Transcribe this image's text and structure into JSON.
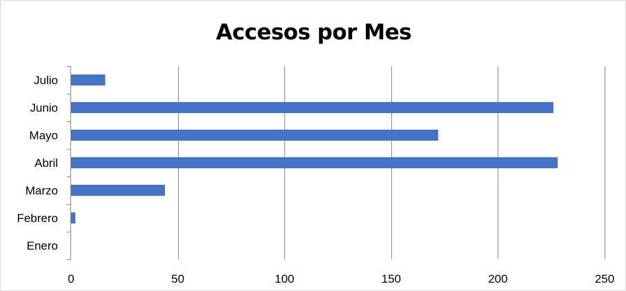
{
  "chart_data": {
    "type": "bar",
    "orientation": "horizontal",
    "title": "Accesos por Mes",
    "xlabel": "",
    "ylabel": "",
    "categories": [
      "Enero",
      "Febrero",
      "Marzo",
      "Abril",
      "Mayo",
      "Junio",
      "Julio"
    ],
    "values": [
      0,
      2,
      44,
      228,
      172,
      226,
      16
    ],
    "xlim": [
      0,
      250
    ],
    "xticks": [
      0,
      50,
      100,
      150,
      200,
      250
    ],
    "grid": "vertical",
    "legend": "none",
    "bar_color": "#4472C4",
    "grid_color": "#868686"
  }
}
